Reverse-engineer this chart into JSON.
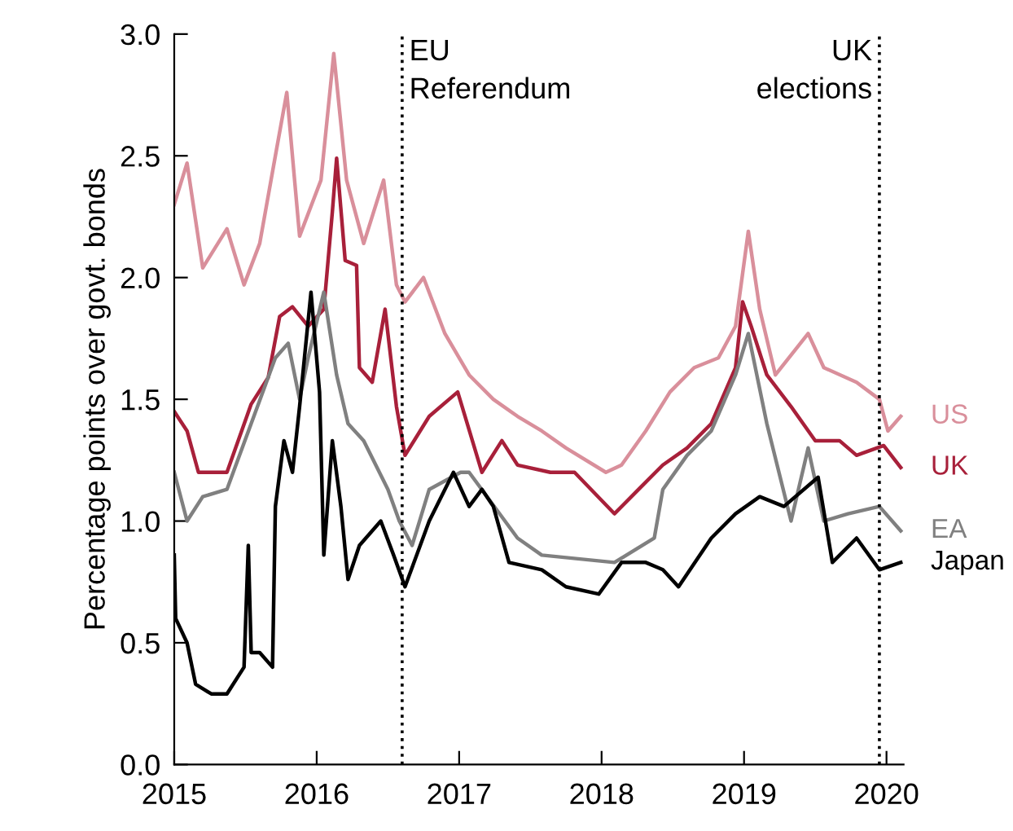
{
  "chart_data": {
    "type": "line",
    "ylabel": "Percentage points over govt. bonds",
    "xlim": [
      2015,
      2020.12
    ],
    "ylim": [
      0,
      3.0
    ],
    "xticks": [
      2015,
      2016,
      2017,
      2018,
      2019,
      2020
    ],
    "yticks": [
      {
        "value": 0,
        "label": "0.0"
      },
      {
        "value": 0.5,
        "label": "0.5"
      },
      {
        "value": 1.0,
        "label": "1.0"
      },
      {
        "value": 1.5,
        "label": "1.5"
      },
      {
        "value": 2.0,
        "label": "2.0"
      },
      {
        "value": 2.5,
        "label": "2.5"
      },
      {
        "value": 3.0,
        "label": "3.0"
      }
    ],
    "grid": false,
    "legend": false,
    "line_style": "solid",
    "marker": "none",
    "ref_lines": [
      {
        "axis": "x",
        "value": 2016.6,
        "label": "EU\nReferendum",
        "color": "#000000",
        "line_style": "dotted"
      },
      {
        "axis": "x",
        "value": 2019.95,
        "label": "UK\nelections",
        "color": "#000000",
        "line_style": "dotted"
      }
    ],
    "series": [
      {
        "name": "US",
        "color": "#d98f9b",
        "x": [
          2015.0,
          2015.09,
          2015.2,
          2015.37,
          2015.49,
          2015.6,
          2015.71,
          2015.79,
          2015.88,
          2016.03,
          2016.12,
          2016.21,
          2016.33,
          2016.47,
          2016.56,
          2016.62,
          2016.75,
          2016.9,
          2017.07,
          2017.24,
          2017.41,
          2017.58,
          2017.75,
          2018.03,
          2018.14,
          2018.31,
          2018.48,
          2018.65,
          2018.82,
          2018.94,
          2019.03,
          2019.11,
          2019.22,
          2019.45,
          2019.56,
          2019.79,
          2019.95,
          2020.01,
          2020.1
        ],
        "values": [
          2.3,
          2.47,
          2.04,
          2.2,
          1.97,
          2.14,
          2.5,
          2.76,
          2.17,
          2.4,
          2.92,
          2.4,
          2.14,
          2.4,
          1.97,
          1.9,
          2.0,
          1.77,
          1.6,
          1.5,
          1.43,
          1.37,
          1.3,
          1.2,
          1.23,
          1.37,
          1.53,
          1.63,
          1.67,
          1.8,
          2.19,
          1.87,
          1.6,
          1.77,
          1.63,
          1.57,
          1.5,
          1.37,
          1.43
        ]
      },
      {
        "name": "UK",
        "color": "#a8203a",
        "x": [
          2015.0,
          2015.09,
          2015.17,
          2015.37,
          2015.54,
          2015.66,
          2015.74,
          2015.83,
          2015.94,
          2016.05,
          2016.11,
          2016.14,
          2016.2,
          2016.28,
          2016.3,
          2016.39,
          2016.48,
          2016.56,
          2016.62,
          2016.79,
          2016.99,
          2017.16,
          2017.3,
          2017.41,
          2017.64,
          2017.81,
          2018.09,
          2018.26,
          2018.43,
          2018.6,
          2018.77,
          2018.94,
          2018.99,
          2019.05,
          2019.16,
          2019.33,
          2019.5,
          2019.67,
          2019.79,
          2019.98,
          2020.1
        ],
        "values": [
          1.45,
          1.37,
          1.2,
          1.2,
          1.48,
          1.59,
          1.84,
          1.88,
          1.8,
          1.87,
          2.27,
          2.49,
          2.07,
          2.05,
          1.63,
          1.57,
          1.87,
          1.47,
          1.27,
          1.43,
          1.53,
          1.2,
          1.33,
          1.23,
          1.2,
          1.2,
          1.03,
          1.13,
          1.23,
          1.3,
          1.4,
          1.63,
          1.9,
          1.8,
          1.6,
          1.47,
          1.33,
          1.33,
          1.27,
          1.31,
          1.22
        ]
      },
      {
        "name": "EA",
        "color": "#808080",
        "x": [
          2015.0,
          2015.09,
          2015.2,
          2015.37,
          2015.54,
          2015.71,
          2015.8,
          2015.88,
          2015.94,
          2016.05,
          2016.14,
          2016.22,
          2016.33,
          2016.5,
          2016.58,
          2016.67,
          2016.79,
          2017.01,
          2017.07,
          2017.41,
          2017.58,
          2018.09,
          2018.37,
          2018.43,
          2018.6,
          2018.77,
          2018.94,
          2019.03,
          2019.16,
          2019.33,
          2019.45,
          2019.56,
          2019.73,
          2019.95,
          2020.1
        ],
        "values": [
          1.2,
          1.0,
          1.1,
          1.13,
          1.4,
          1.67,
          1.73,
          1.5,
          1.67,
          1.94,
          1.6,
          1.4,
          1.33,
          1.13,
          1.0,
          0.9,
          1.13,
          1.2,
          1.2,
          0.93,
          0.86,
          0.83,
          0.93,
          1.13,
          1.27,
          1.37,
          1.6,
          1.77,
          1.4,
          1.0,
          1.3,
          1.0,
          1.03,
          1.06,
          0.96
        ]
      },
      {
        "name": "Japan",
        "color": "#000000",
        "x": [
          2015.0,
          2015.01,
          2015.09,
          2015.15,
          2015.26,
          2015.37,
          2015.49,
          2015.52,
          2015.54,
          2015.6,
          2015.69,
          2015.71,
          2015.77,
          2015.83,
          2015.88,
          2015.96,
          2016.02,
          2016.05,
          2016.11,
          2016.17,
          2016.22,
          2016.3,
          2016.45,
          2016.54,
          2016.62,
          2016.79,
          2016.96,
          2017.07,
          2017.16,
          2017.24,
          2017.35,
          2017.58,
          2017.75,
          2017.98,
          2018.14,
          2018.31,
          2018.43,
          2018.54,
          2018.77,
          2018.94,
          2019.11,
          2019.28,
          2019.52,
          2019.62,
          2019.79,
          2019.95,
          2020.1
        ],
        "values": [
          0.86,
          0.6,
          0.5,
          0.33,
          0.29,
          0.29,
          0.4,
          0.9,
          0.46,
          0.46,
          0.4,
          1.06,
          1.33,
          1.2,
          1.47,
          1.94,
          1.53,
          0.86,
          1.33,
          1.06,
          0.76,
          0.9,
          1.0,
          0.86,
          0.73,
          1.0,
          1.2,
          1.06,
          1.13,
          1.06,
          0.83,
          0.8,
          0.73,
          0.7,
          0.83,
          0.83,
          0.8,
          0.73,
          0.93,
          1.03,
          1.1,
          1.06,
          1.18,
          0.83,
          0.93,
          0.8,
          0.83
        ]
      }
    ]
  }
}
